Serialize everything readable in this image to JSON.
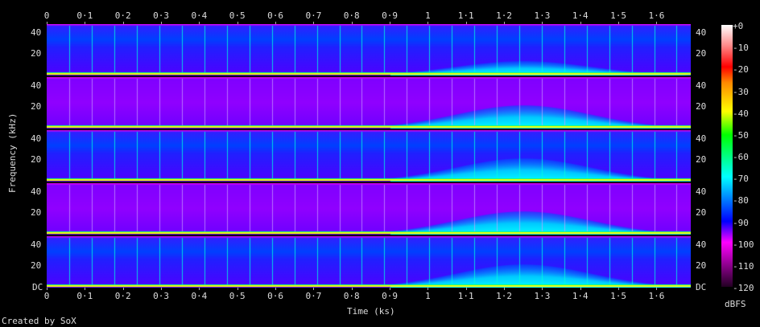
{
  "footer": {
    "credit": "Created by SoX"
  },
  "chart_data": {
    "type": "heatmap",
    "xlabel": "Time (ks)",
    "ylabel": "Frequency (kHz)",
    "xlim": [
      0,
      1.69
    ],
    "ylim": [
      0,
      48
    ],
    "x_ticks": [
      "0",
      "0·1",
      "0·2",
      "0·3",
      "0·4",
      "0·5",
      "0·6",
      "0·7",
      "0·8",
      "0·9",
      "1",
      "1·1",
      "1·2",
      "1·3",
      "1·4",
      "1·5",
      "1·6"
    ],
    "y_ticks": [
      "40",
      "20"
    ],
    "y_bottom_label": "DC",
    "channels": 5,
    "colorbar": {
      "label": "dBFS",
      "range": [
        -120,
        0
      ],
      "ticks": [
        "+0",
        "-10",
        "-20",
        "-30",
        "-40",
        "-50",
        "-60",
        "-70",
        "-80",
        "-90",
        "-100",
        "-110",
        "-120"
      ]
    }
  }
}
